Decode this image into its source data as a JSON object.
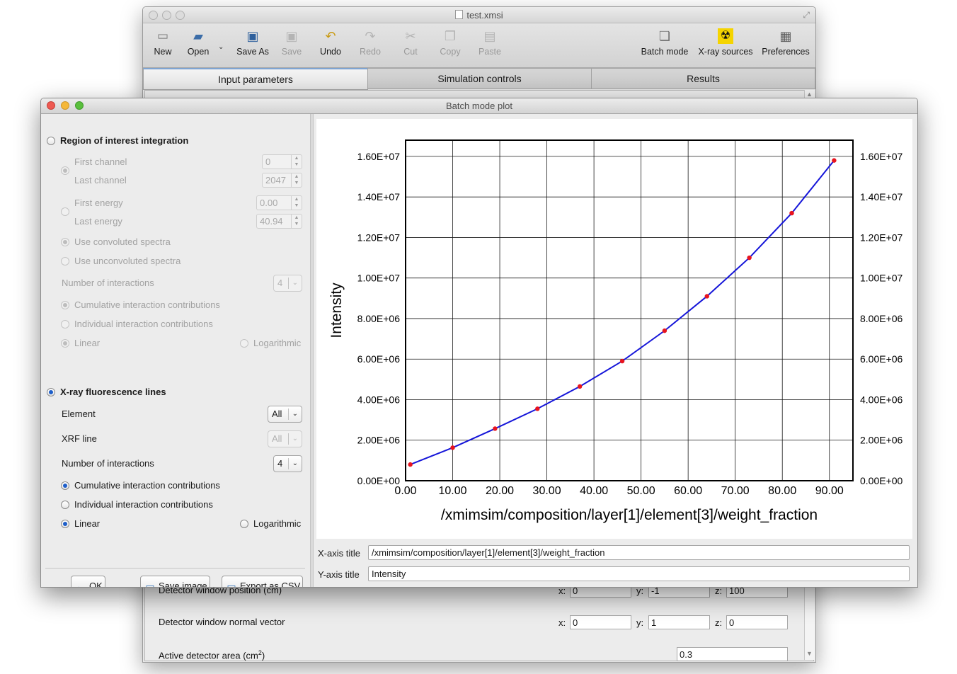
{
  "main_window": {
    "title": "test.xmsi",
    "toolbar": [
      {
        "label": "New",
        "icon": "new-file-icon",
        "enabled": true
      },
      {
        "label": "Open",
        "icon": "open-folder-icon",
        "enabled": true
      },
      {
        "label": "Save As",
        "icon": "save-as-icon",
        "enabled": true
      },
      {
        "label": "Save",
        "icon": "save-icon",
        "enabled": false
      },
      {
        "label": "Undo",
        "icon": "undo-icon",
        "enabled": true
      },
      {
        "label": "Redo",
        "icon": "redo-icon",
        "enabled": false
      },
      {
        "label": "Cut",
        "icon": "scissors-icon",
        "enabled": false
      },
      {
        "label": "Copy",
        "icon": "copy-icon",
        "enabled": false
      },
      {
        "label": "Paste",
        "icon": "paste-icon",
        "enabled": false
      }
    ],
    "toolbar_right": [
      {
        "label": "Batch mode",
        "icon": "batch-mode-icon"
      },
      {
        "label": "X-ray sources",
        "icon": "radiation-icon"
      },
      {
        "label": "Preferences",
        "icon": "preferences-icon"
      }
    ],
    "tabs": [
      {
        "label": "Input parameters",
        "active": true
      },
      {
        "label": "Simulation controls",
        "active": false
      },
      {
        "label": "Results",
        "active": false
      }
    ],
    "detector": {
      "window_position_label": "Detector window position (cm)",
      "window_position": {
        "x_label": "x:",
        "x": "0",
        "y_label": "y:",
        "y": "-1",
        "z_label": "z:",
        "z": "100"
      },
      "normal_vector_label": "Detector window normal vector",
      "normal_vector": {
        "x_label": "x:",
        "x": "0",
        "y_label": "y:",
        "y": "1",
        "z_label": "z:",
        "z": "0"
      },
      "active_area_label": "Active detector area (cm",
      "active_area_sup": "2",
      "active_area_suffix": ")",
      "active_area": "0.3"
    }
  },
  "dialog": {
    "title": "Batch mode plot",
    "roi": {
      "label": "Region of interest integration",
      "first_channel_label": "First channel",
      "first_channel": "0",
      "last_channel_label": "Last channel",
      "last_channel": "2047",
      "first_energy_label": "First energy",
      "first_energy": "0.00",
      "last_energy_label": "Last energy",
      "last_energy": "40.94",
      "convoluted_label": "Use convoluted spectra",
      "unconvoluted_label": "Use unconvoluted spectra",
      "num_interactions_label": "Number of interactions",
      "num_interactions": "4",
      "cumulative_label": "Cumulative interaction contributions",
      "individual_label": "Individual interaction contributions",
      "linear_label": "Linear",
      "log_label": "Logarithmic"
    },
    "xrf": {
      "label": "X-ray fluorescence lines",
      "element_label": "Element",
      "element": "All",
      "line_label": "XRF line",
      "line": "All",
      "num_interactions_label": "Number of interactions",
      "num_interactions": "4",
      "cumulative_label": "Cumulative interaction contributions",
      "individual_label": "Individual interaction contributions",
      "linear_label": "Linear",
      "log_label": "Logarithmic"
    },
    "buttons": {
      "ok": "OK",
      "save_image": "Save image",
      "export_csv": "Export as CSV"
    },
    "axis_titles": {
      "x_label": "X-axis title",
      "x_value": "/xmimsim/composition/layer[1]/element[3]/weight_fraction",
      "y_label": "Y-axis title",
      "y_value": "Intensity"
    }
  },
  "chart_data": {
    "type": "line",
    "xlabel": "/xmimsim/composition/layer[1]/element[3]/weight_fraction",
    "ylabel": "Intensity",
    "xlim": [
      0,
      95
    ],
    "ylim": [
      0,
      16800000
    ],
    "x_ticks": [
      "0.00",
      "10.00",
      "20.00",
      "30.00",
      "40.00",
      "50.00",
      "60.00",
      "70.00",
      "80.00",
      "90.00"
    ],
    "y_ticks": [
      "0.00E+00",
      "2.00E+06",
      "4.00E+06",
      "6.00E+06",
      "8.00E+06",
      "1.00E+07",
      "1.20E+07",
      "1.40E+07",
      "1.60E+07"
    ],
    "grid": true,
    "line_color": "#1515d9",
    "marker_color": "#e8141e",
    "series": [
      {
        "x": [
          1.0,
          10.0,
          19.0,
          28.0,
          37.0,
          46.0,
          55.0,
          64.0,
          73.0,
          82.0,
          91.0
        ],
        "y": [
          800000,
          1630000,
          2570000,
          3550000,
          4650000,
          5900000,
          7400000,
          9100000,
          11000000,
          13200000,
          15800000
        ]
      }
    ]
  }
}
